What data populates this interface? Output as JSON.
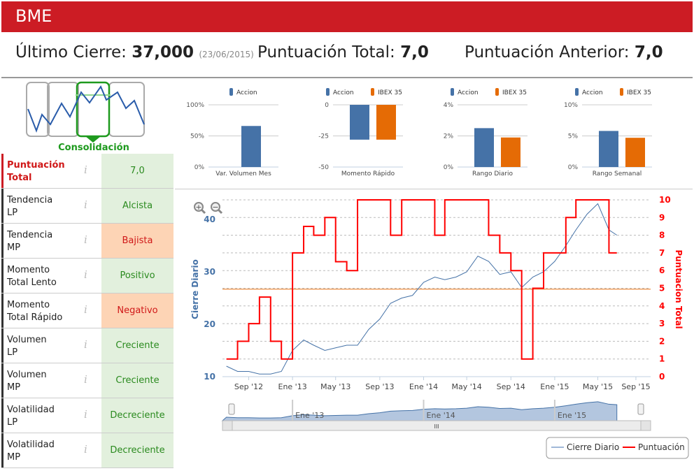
{
  "header": {
    "title": "BME"
  },
  "summary": {
    "last_close_label": "Último Cierre:",
    "last_close_value": "37,000",
    "last_close_date": "(23/06/2015)",
    "total_label": "Puntuación Total:",
    "total_value": "7,0",
    "prev_label": "Puntuación Anterior:",
    "prev_value": "7,0"
  },
  "pattern": {
    "label": "Consolidación",
    "color": "#1e9a1e"
  },
  "rows": [
    {
      "label1": "Puntuación",
      "label2": "Total",
      "value": "7,0",
      "tone": "g",
      "highlight": true
    },
    {
      "label1": "Tendencia",
      "label2": "LP",
      "value": "Alcista",
      "tone": "g"
    },
    {
      "label1": "Tendencia",
      "label2": "MP",
      "value": "Bajista",
      "tone": "o"
    },
    {
      "label1": "Momento",
      "label2": "Total Lento",
      "value": "Positivo",
      "tone": "g"
    },
    {
      "label1": "Momento",
      "label2": "Total Rápido",
      "value": "Negativo",
      "tone": "o"
    },
    {
      "label1": "Volumen",
      "label2": "LP",
      "value": "Creciente",
      "tone": "g"
    },
    {
      "label1": "Volumen",
      "label2": "MP",
      "value": "Creciente",
      "tone": "g"
    },
    {
      "label1": "Volatilidad",
      "label2": "LP",
      "value": "Decreciente",
      "tone": "g"
    },
    {
      "label1": "Volatilidad",
      "label2": "MP",
      "value": "Decreciente",
      "tone": "g"
    }
  ],
  "info_icon": "i",
  "colors": {
    "accion": "#4572a7",
    "ibex": "#e56b05",
    "price": "#4572a7",
    "score": "#ff0000",
    "brand": "#cc1c24"
  },
  "chart_data": [
    {
      "type": "bar",
      "title": "Var. Volumen Mes",
      "legend": [
        "Accion"
      ],
      "yticks": [
        "100%",
        "50%",
        "0%"
      ],
      "ylim": [
        0,
        100
      ],
      "values": [
        66
      ]
    },
    {
      "type": "bar",
      "title": "Momento Rápido",
      "legend": [
        "Accion",
        "IBEX 35"
      ],
      "yticks": [
        "0",
        "-25",
        "-50"
      ],
      "ylim": [
        -50,
        0
      ],
      "values": [
        -28,
        -28
      ]
    },
    {
      "type": "bar",
      "title": "Rango Diario",
      "legend": [
        "Accion",
        "IBEX 35"
      ],
      "yticks": [
        "4%",
        "2%",
        "0%"
      ],
      "ylim": [
        0,
        4
      ],
      "values": [
        2.5,
        1.9
      ]
    },
    {
      "type": "bar",
      "title": "Rango Semanal",
      "legend": [
        "Accion",
        "IBEX 35"
      ],
      "yticks": [
        "10%",
        "5%",
        "0%"
      ],
      "ylim": [
        0,
        10
      ],
      "values": [
        5.8,
        4.7
      ]
    },
    {
      "type": "line",
      "ylabel": "Cierre Diario",
      "y2label": "Puntuacion Total",
      "ylim": [
        10,
        43.2
      ],
      "y2lim": [
        0,
        10
      ],
      "yticks": [
        "40",
        "30",
        "20",
        "10"
      ],
      "y2ticks": [
        "10",
        "9",
        "8",
        "7",
        "6",
        "5",
        "4",
        "3",
        "2",
        "1",
        "0"
      ],
      "xticks": [
        "Sep '12",
        "Ene '13",
        "May '13",
        "Sep '13",
        "Ene '14",
        "May '14",
        "Sep '14",
        "Ene '15",
        "May '15",
        "Sep '15"
      ],
      "navigator_ticks": [
        "Ene '13",
        "Ene '14",
        "Ene '15"
      ],
      "plot_line": 26.7,
      "legend": [
        "Cierre Diario",
        "Puntuación"
      ],
      "price": [
        [
          "2012-07",
          12
        ],
        [
          "2012-08",
          11
        ],
        [
          "2012-09",
          11
        ],
        [
          "2012-10",
          10.5
        ],
        [
          "2012-11",
          10.5
        ],
        [
          "2012-12",
          11
        ],
        [
          "2013-01",
          15
        ],
        [
          "2013-02",
          17
        ],
        [
          "2013-03",
          16
        ],
        [
          "2013-04",
          15
        ],
        [
          "2013-05",
          15.5
        ],
        [
          "2013-06",
          16
        ],
        [
          "2013-07",
          16
        ],
        [
          "2013-08",
          19
        ],
        [
          "2013-09",
          21
        ],
        [
          "2013-10",
          24
        ],
        [
          "2013-11",
          25
        ],
        [
          "2013-12",
          25.5
        ],
        [
          "2014-01",
          28
        ],
        [
          "2014-02",
          29
        ],
        [
          "2014-03",
          28.5
        ],
        [
          "2014-04",
          29
        ],
        [
          "2014-05",
          30
        ],
        [
          "2014-06",
          33
        ],
        [
          "2014-07",
          32
        ],
        [
          "2014-08",
          29.5
        ],
        [
          "2014-09",
          30
        ],
        [
          "2014-10",
          27
        ],
        [
          "2014-11",
          29
        ],
        [
          "2014-12",
          30
        ],
        [
          "2015-01",
          32
        ],
        [
          "2015-02",
          35
        ],
        [
          "2015-03",
          38
        ],
        [
          "2015-04",
          41
        ],
        [
          "2015-05",
          43
        ],
        [
          "2015-06",
          38
        ],
        [
          "2015-06-23",
          37
        ]
      ],
      "score": [
        [
          "2012-07",
          1
        ],
        [
          "2012-08",
          2
        ],
        [
          "2012-09",
          3
        ],
        [
          "2012-10",
          4.5
        ],
        [
          "2012-11",
          2
        ],
        [
          "2012-12",
          1
        ],
        [
          "2013-01",
          7
        ],
        [
          "2013-02",
          8.5
        ],
        [
          "2013-03",
          8
        ],
        [
          "2013-04",
          9
        ],
        [
          "2013-05",
          6.5
        ],
        [
          "2013-06",
          6
        ],
        [
          "2013-07",
          10
        ],
        [
          "2013-10",
          8
        ],
        [
          "2013-11",
          10
        ],
        [
          "2014-02",
          8
        ],
        [
          "2014-03",
          10
        ],
        [
          "2014-07",
          8
        ],
        [
          "2014-08",
          7
        ],
        [
          "2014-09",
          6
        ],
        [
          "2014-10",
          1
        ],
        [
          "2014-11",
          5
        ],
        [
          "2014-12",
          7
        ],
        [
          "2015-02",
          9
        ],
        [
          "2015-03",
          10
        ],
        [
          "2015-06",
          7
        ],
        [
          "2015-06-23",
          7
        ]
      ]
    }
  ]
}
